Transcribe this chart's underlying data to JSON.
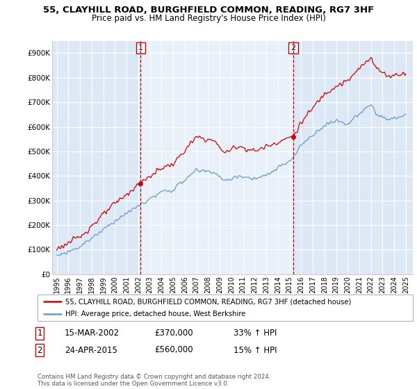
{
  "title": "55, CLAYHILL ROAD, BURGHFIELD COMMON, READING, RG7 3HF",
  "subtitle": "Price paid vs. HM Land Registry's House Price Index (HPI)",
  "red_label": "55, CLAYHILL ROAD, BURGHFIELD COMMON, READING, RG7 3HF (detached house)",
  "blue_label": "HPI: Average price, detached house, West Berkshire",
  "ylabel_ticks": [
    "£0",
    "£100K",
    "£200K",
    "£300K",
    "£400K",
    "£500K",
    "£600K",
    "£700K",
    "£800K",
    "£900K"
  ],
  "ytick_vals": [
    0,
    100000,
    200000,
    300000,
    400000,
    500000,
    600000,
    700000,
    800000,
    900000
  ],
  "ylim": [
    0,
    950000
  ],
  "sale1_date": "15-MAR-2002",
  "sale1_price": 370000,
  "sale1_hpi": "33% ↑ HPI",
  "sale2_date": "24-APR-2015",
  "sale2_price": 560000,
  "sale2_hpi": "15% ↑ HPI",
  "footer": "Contains HM Land Registry data © Crown copyright and database right 2024.\nThis data is licensed under the Open Government Licence v3.0.",
  "red_color": "#cc0000",
  "blue_color": "#6699cc",
  "vline_color": "#cc0000",
  "grid_color": "#cccccc",
  "background_color": "#dce8f5",
  "highlight_color": "#e8f0fa",
  "sale1_year": 2002.21,
  "sale2_year": 2015.32,
  "xstart": 1994.6,
  "xend": 2025.6
}
